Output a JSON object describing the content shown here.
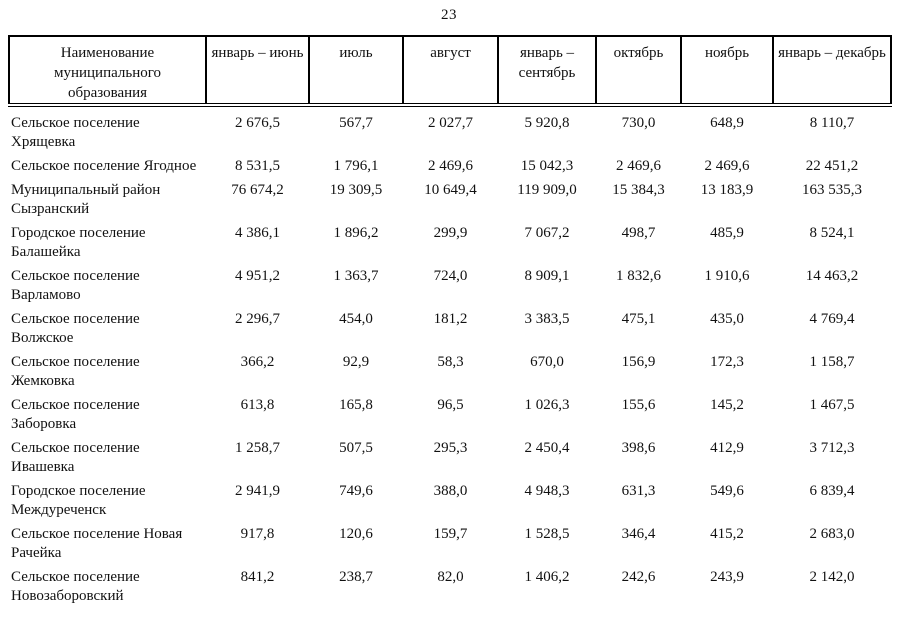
{
  "page": {
    "number": "23"
  },
  "table": {
    "columns": [
      "Наименование муниципального образования",
      "январь – июнь",
      "июль",
      "август",
      "январь – сентябрь",
      "октябрь",
      "ноябрь",
      "январь – декабрь"
    ],
    "rows": [
      {
        "name": "Сельское поселение Хрящевка",
        "values": [
          "2 676,5",
          "567,7",
          "2 027,7",
          "5 920,8",
          "730,0",
          "648,9",
          "8 110,7"
        ]
      },
      {
        "name": "Сельское поселение Ягодное",
        "values": [
          "8 531,5",
          "1 796,1",
          "2 469,6",
          "15 042,3",
          "2 469,6",
          "2 469,6",
          "22 451,2"
        ]
      },
      {
        "name": "Муниципальный район Сызранский",
        "values": [
          "76 674,2",
          "19 309,5",
          "10 649,4",
          "119 909,0",
          "15 384,3",
          "13 183,9",
          "163 535,3"
        ]
      },
      {
        "name": "Городское поселение Балашейка",
        "values": [
          "4 386,1",
          "1 896,2",
          "299,9",
          "7 067,2",
          "498,7",
          "485,9",
          "8 524,1"
        ]
      },
      {
        "name": "Сельское поселение Варламово",
        "values": [
          "4 951,2",
          "1 363,7",
          "724,0",
          "8 909,1",
          "1 832,6",
          "1 910,6",
          "14 463,2"
        ]
      },
      {
        "name": "Сельское поселение Волжское",
        "values": [
          "2 296,7",
          "454,0",
          "181,2",
          "3 383,5",
          "475,1",
          "435,0",
          "4 769,4"
        ]
      },
      {
        "name": "Сельское поселение Жемковка",
        "values": [
          "366,2",
          "92,9",
          "58,3",
          "670,0",
          "156,9",
          "172,3",
          "1 158,7"
        ]
      },
      {
        "name": "Сельское поселение Заборовка",
        "values": [
          "613,8",
          "165,8",
          "96,5",
          "1 026,3",
          "155,6",
          "145,2",
          "1 467,5"
        ]
      },
      {
        "name": "Сельское поселение Ивашевка",
        "values": [
          "1 258,7",
          "507,5",
          "295,3",
          "2 450,4",
          "398,6",
          "412,9",
          "3 712,3"
        ]
      },
      {
        "name": "Городское поселение Междуреченск",
        "values": [
          "2 941,9",
          "749,6",
          "388,0",
          "4 948,3",
          "631,3",
          "549,6",
          "6 839,4"
        ]
      },
      {
        "name": "Сельское поселение Новая Рачейка",
        "values": [
          "917,8",
          "120,6",
          "159,7",
          "1 528,5",
          "346,4",
          "415,2",
          "2 683,0"
        ]
      },
      {
        "name": "Сельское поселение Новозаборовский",
        "values": [
          "841,2",
          "238,7",
          "82,0",
          "1 406,2",
          "242,6",
          "243,9",
          "2 142,0"
        ]
      }
    ]
  }
}
